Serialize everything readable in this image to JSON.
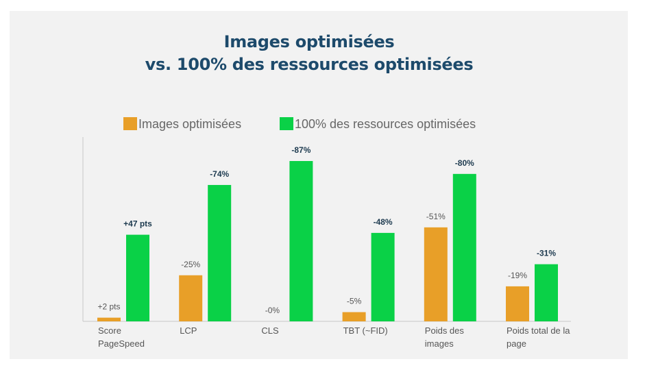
{
  "title": {
    "line1": "Images optimisées",
    "line2": "vs. 100% des ressources optimisées"
  },
  "colors": {
    "background": "#f2f2f2",
    "title": "#1d4a6b",
    "images": "#e89f28",
    "all": "#0ad147",
    "axis": "#c8c8c8",
    "label_images": "#555555",
    "label_all": "#1d3a4f"
  },
  "chart_data": {
    "type": "bar",
    "title": "Images optimisées vs. 100% des ressources optimisées",
    "legend_position": "top",
    "grid": false,
    "categories": [
      [
        "Score",
        "PageSpeed"
      ],
      [
        "LCP"
      ],
      [
        "CLS"
      ],
      [
        "TBT (~FID)"
      ],
      [
        "Poids des",
        "images"
      ],
      [
        "Poids total de la",
        "page"
      ]
    ],
    "series": [
      {
        "name": "Images optimisées",
        "values": [
          2,
          25,
          0,
          5,
          51,
          19
        ],
        "labels": [
          "+2 pts",
          "-25%",
          "-0%",
          "-5%",
          "-51%",
          "-19%"
        ]
      },
      {
        "name": "100% des ressources optimisées",
        "values": [
          47,
          74,
          87,
          48,
          80,
          31
        ],
        "labels": [
          "+47 pts",
          "-74%",
          "-87%",
          "-48%",
          "-80%",
          "-31%"
        ]
      }
    ],
    "ylim": [
      0,
      87
    ]
  }
}
